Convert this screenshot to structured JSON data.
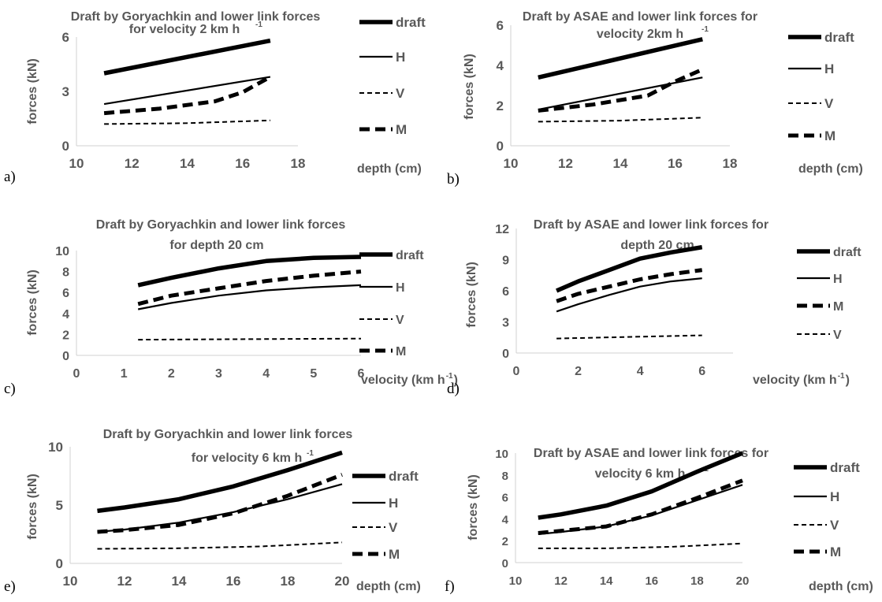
{
  "figure": {
    "title": ""
  },
  "chart_data": [
    {
      "id": "a",
      "type": "line",
      "panel_label": "a)",
      "title_lines": [
        "Draft by Goryachkin and lower link forces",
        "for   velocity 2 km h",
        "-1"
      ],
      "xlabel": "depth (cm)",
      "ylabel": "forces (kN)",
      "xlim": [
        10,
        18
      ],
      "ylim": [
        0,
        6
      ],
      "xticks": [
        10,
        12,
        14,
        16,
        18
      ],
      "yticks": [
        0,
        3,
        6
      ],
      "grid": false,
      "legend_position": "right",
      "legend": [
        "draft",
        "H",
        "V",
        "M"
      ],
      "series": [
        {
          "name": "draft",
          "x": [
            11,
            17
          ],
          "y": [
            4.0,
            5.8
          ]
        },
        {
          "name": "H",
          "x": [
            11,
            17
          ],
          "y": [
            2.3,
            3.8
          ]
        },
        {
          "name": "V",
          "x": [
            11,
            14,
            17
          ],
          "y": [
            1.2,
            1.25,
            1.4
          ]
        },
        {
          "name": "M",
          "x": [
            11,
            13,
            15,
            16,
            17
          ],
          "y": [
            1.8,
            2.05,
            2.45,
            2.95,
            3.8
          ]
        }
      ]
    },
    {
      "id": "b",
      "type": "line",
      "panel_label": "b)",
      "title_lines": [
        "Draft by ASAE and lower link forces for",
        "velocity 2km h",
        "-1"
      ],
      "xlabel": "depth (cm)",
      "ylabel": "forces (kN)",
      "xlim": [
        10,
        18
      ],
      "ylim": [
        0,
        6
      ],
      "xticks": [
        10,
        12,
        14,
        16,
        18
      ],
      "yticks": [
        0,
        2,
        4,
        6
      ],
      "grid": false,
      "legend_position": "right",
      "legend": [
        "draft",
        "H",
        "V",
        "M"
      ],
      "series": [
        {
          "name": "draft",
          "x": [
            11,
            17
          ],
          "y": [
            3.4,
            5.3
          ]
        },
        {
          "name": "H",
          "x": [
            11,
            17
          ],
          "y": [
            1.8,
            3.4
          ]
        },
        {
          "name": "V",
          "x": [
            11,
            14,
            17
          ],
          "y": [
            1.2,
            1.25,
            1.4
          ]
        },
        {
          "name": "M",
          "x": [
            11,
            13,
            15,
            16,
            17
          ],
          "y": [
            1.75,
            2.05,
            2.5,
            3.2,
            3.8
          ]
        }
      ]
    },
    {
      "id": "c",
      "type": "line",
      "panel_label": "c)",
      "title_lines": [
        "Draft by Goryachkin and lower link forces",
        "for  depth 20 cm",
        ""
      ],
      "xlabel": "velocity (km h",
      "xlabel_sup": "-1",
      "xlabel_end": ")",
      "ylabel": "forces (kN)",
      "xlim": [
        0,
        6
      ],
      "ylim": [
        0,
        10
      ],
      "xticks": [
        0,
        1,
        2,
        3,
        4,
        5,
        6
      ],
      "yticks": [
        0,
        2,
        4,
        6,
        8,
        10
      ],
      "grid": false,
      "legend_position": "right",
      "legend": [
        "draft",
        "H",
        "V",
        "M"
      ],
      "series": [
        {
          "name": "draft",
          "x": [
            1.3,
            2,
            3,
            4,
            5,
            6
          ],
          "y": [
            6.7,
            7.4,
            8.3,
            9.0,
            9.3,
            9.4
          ]
        },
        {
          "name": "H",
          "x": [
            1.3,
            2,
            3,
            4,
            5,
            6
          ],
          "y": [
            4.4,
            5.0,
            5.7,
            6.2,
            6.5,
            6.7
          ]
        },
        {
          "name": "V",
          "x": [
            1.3,
            6
          ],
          "y": [
            1.5,
            1.6
          ]
        },
        {
          "name": "M",
          "x": [
            1.3,
            2,
            3,
            4,
            5,
            6
          ],
          "y": [
            4.9,
            5.7,
            6.4,
            7.1,
            7.6,
            8.0
          ]
        }
      ]
    },
    {
      "id": "d",
      "type": "line",
      "panel_label": "d)",
      "title_lines": [
        "Draft by  ASAE and lower link forces for",
        "depth 20  cm",
        ""
      ],
      "xlabel": "velocity (km h",
      "xlabel_sup": "-1",
      "xlabel_end": ")",
      "ylabel": "forces (kN)",
      "xlim": [
        0,
        7
      ],
      "ylim": [
        0,
        12
      ],
      "xticks": [
        0,
        2,
        4,
        6
      ],
      "yticks": [
        0,
        3,
        6,
        9,
        12
      ],
      "grid": false,
      "legend_position": "right",
      "legend": [
        "draft",
        "H",
        "M",
        "V"
      ],
      "series": [
        {
          "name": "draft",
          "x": [
            1.3,
            2,
            3,
            4,
            5,
            6
          ],
          "y": [
            6.0,
            6.9,
            8.0,
            9.1,
            9.7,
            10.2
          ]
        },
        {
          "name": "H",
          "x": [
            1.3,
            2,
            3,
            4,
            5,
            6
          ],
          "y": [
            4.0,
            4.7,
            5.6,
            6.4,
            6.9,
            7.2
          ]
        },
        {
          "name": "M",
          "x": [
            1.3,
            2,
            3,
            4,
            5,
            6
          ],
          "y": [
            5.0,
            5.7,
            6.4,
            7.1,
            7.6,
            8.0
          ]
        },
        {
          "name": "V",
          "x": [
            1.3,
            6
          ],
          "y": [
            1.4,
            1.7
          ]
        }
      ]
    },
    {
      "id": "e",
      "type": "line",
      "panel_label": "e)",
      "title_lines": [
        "Draft by Goryachkin and lower link forces",
        "for velocity 6 km h",
        "-1"
      ],
      "xlabel": "depth (cm)",
      "ylabel": "forces (kN)",
      "xlim": [
        10,
        20
      ],
      "ylim": [
        0,
        10
      ],
      "xticks": [
        10,
        12,
        14,
        16,
        18,
        20
      ],
      "yticks": [
        0,
        5,
        10
      ],
      "grid": false,
      "legend_position": "right",
      "legend": [
        "draft",
        "H",
        "V",
        "M"
      ],
      "series": [
        {
          "name": "draft",
          "x": [
            11,
            12,
            14,
            16,
            18,
            20
          ],
          "y": [
            4.5,
            4.8,
            5.5,
            6.6,
            8.0,
            9.5
          ]
        },
        {
          "name": "H",
          "x": [
            11,
            12,
            14,
            16,
            18,
            20
          ],
          "y": [
            2.7,
            2.9,
            3.5,
            4.4,
            5.5,
            6.8
          ]
        },
        {
          "name": "V",
          "x": [
            11,
            14,
            17,
            20
          ],
          "y": [
            1.25,
            1.3,
            1.45,
            1.8
          ]
        },
        {
          "name": "M",
          "x": [
            11,
            12,
            14,
            16,
            18,
            20
          ],
          "y": [
            2.7,
            2.85,
            3.3,
            4.3,
            5.8,
            7.6
          ]
        }
      ]
    },
    {
      "id": "f",
      "type": "line",
      "panel_label": "f)",
      "title_lines": [
        "Draft by ASAE and lower link forces for",
        "velocity 6 km h",
        "-1"
      ],
      "xlabel": "depth (cm)",
      "ylabel": "forces (kN)",
      "xlim": [
        10,
        20
      ],
      "ylim": [
        0,
        10
      ],
      "xticks": [
        10,
        12,
        14,
        16,
        18,
        20
      ],
      "yticks": [
        0,
        2,
        4,
        6,
        8,
        10
      ],
      "grid": false,
      "legend_position": "right",
      "legend": [
        "draft",
        "H",
        "V",
        "M"
      ],
      "series": [
        {
          "name": "draft",
          "x": [
            11,
            12,
            14,
            16,
            18,
            20
          ],
          "y": [
            4.1,
            4.4,
            5.2,
            6.5,
            8.3,
            10.0
          ]
        },
        {
          "name": "H",
          "x": [
            11,
            12,
            14,
            16,
            18,
            20
          ],
          "y": [
            2.6,
            2.8,
            3.3,
            4.3,
            5.7,
            7.1
          ]
        },
        {
          "name": "V",
          "x": [
            11,
            14,
            17,
            20
          ],
          "y": [
            1.3,
            1.3,
            1.45,
            1.75
          ]
        },
        {
          "name": "M",
          "x": [
            11,
            12,
            14,
            16,
            18,
            20
          ],
          "y": [
            2.7,
            2.9,
            3.3,
            4.4,
            5.9,
            7.5
          ]
        }
      ]
    }
  ]
}
